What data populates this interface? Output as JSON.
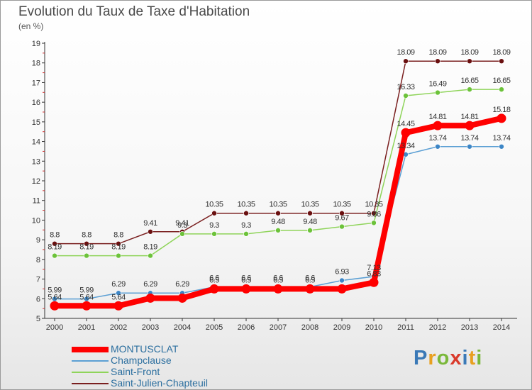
{
  "title": "Evolution du Taux de Taxe d'Habitation",
  "unit_label": "(en %)",
  "brand": {
    "text": "Proxiti",
    "letters": [
      {
        "ch": "P",
        "color": "#3a79b7"
      },
      {
        "ch": "r",
        "color": "#e8a020"
      },
      {
        "ch": "o",
        "color": "#7ab83a"
      },
      {
        "ch": "x",
        "color": "#d93a2b"
      },
      {
        "ch": "i",
        "color": "#3a79b7"
      },
      {
        "ch": "t",
        "color": "#e8a020"
      },
      {
        "ch": "i",
        "color": "#7ab83a"
      }
    ]
  },
  "chart_data": {
    "type": "line",
    "x": [
      2000,
      2001,
      2002,
      2003,
      2004,
      2005,
      2006,
      2007,
      2008,
      2009,
      2010,
      2011,
      2012,
      2013,
      2014
    ],
    "ylim": [
      5,
      19
    ],
    "yticks": [
      5,
      6,
      7,
      8,
      9,
      10,
      11,
      12,
      13,
      14,
      15,
      16,
      17,
      18,
      19
    ],
    "grid": false,
    "legend_position": "bottom-left",
    "series": [
      {
        "name": "Saint-Julien-Chapteuil",
        "color": "#7a1f1f",
        "marker": "#6a1010",
        "emphasis": false,
        "values": [
          8.8,
          8.8,
          8.8,
          9.41,
          9.41,
          10.35,
          10.35,
          10.35,
          10.35,
          10.35,
          10.35,
          18.09,
          18.09,
          18.09,
          18.09
        ],
        "labels": [
          "8.8",
          "8.8",
          "8.8",
          "9.41",
          "9.41",
          "10.35",
          "10.35",
          "10.35",
          "10.35",
          "10.35",
          "10.35",
          "18.09",
          "18.09",
          "18.09",
          "18.09"
        ]
      },
      {
        "name": "Saint-Front",
        "color": "#8fd45a",
        "marker": "#6cc23a",
        "emphasis": false,
        "values": [
          8.19,
          8.19,
          8.19,
          8.19,
          9.3,
          9.3,
          9.3,
          9.48,
          9.48,
          9.67,
          9.86,
          16.33,
          16.49,
          16.65,
          16.65
        ],
        "labels": [
          "8.19",
          "8.19",
          "8.19",
          "8.19",
          "9.3",
          "9.3",
          "9.3",
          "9.48",
          "9.48",
          "9.67",
          "9.86",
          "16.33",
          "16.49",
          "16.65",
          "16.65"
        ]
      },
      {
        "name": "Champclause",
        "color": "#5b9fd4",
        "marker": "#3d86c6",
        "emphasis": false,
        "values": [
          5.99,
          5.99,
          6.29,
          6.29,
          6.29,
          6.6,
          6.6,
          6.6,
          6.6,
          6.93,
          7.13,
          13.34,
          13.74,
          13.74,
          13.74
        ],
        "labels": [
          "5.99",
          "5.99",
          "6.29",
          "6.29",
          "6.29",
          "6.6",
          "6.6",
          "6.6",
          "6.6",
          "6.93",
          "7.13",
          "13.34",
          "13.74",
          "13.74",
          "13.74"
        ]
      },
      {
        "name": "MONTUSCLAT",
        "color": "#ff0000",
        "marker": "#ff0000",
        "emphasis": true,
        "values": [
          5.64,
          5.64,
          5.64,
          6.03,
          6.03,
          6.5,
          6.5,
          6.5,
          6.5,
          6.5,
          6.83,
          14.45,
          14.81,
          14.81,
          15.18
        ],
        "labels": [
          "5.64",
          "5.64",
          "5.64",
          "",
          "",
          "6.5",
          "6.5",
          "6.5",
          "6.5",
          "",
          "6.83",
          "14.45",
          "14.81",
          "14.81",
          "15.18"
        ]
      }
    ]
  },
  "legend": [
    {
      "name": "MONTUSCLAT",
      "color": "#ff0000",
      "thick": true
    },
    {
      "name": "Champclause",
      "color": "#5b9fd4",
      "thick": false
    },
    {
      "name": "Saint-Front",
      "color": "#8fd45a",
      "thick": false
    },
    {
      "name": "Saint-Julien-Chapteuil",
      "color": "#7a1f1f",
      "thick": false
    }
  ]
}
